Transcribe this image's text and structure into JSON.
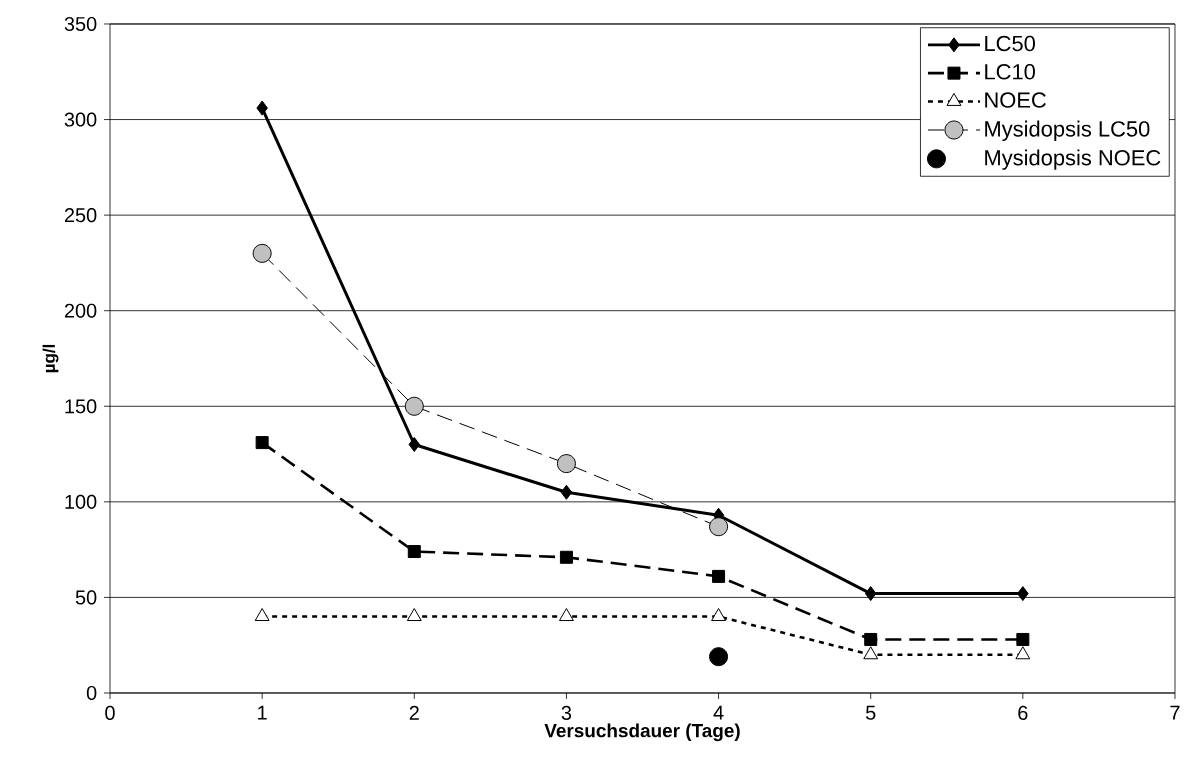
{
  "chart_data": {
    "type": "line",
    "xlabel": "Versuchsdauer (Tage)",
    "ylabel": "µg/l",
    "xlim": [
      0,
      7
    ],
    "xticks": [
      0,
      1,
      2,
      3,
      4,
      5,
      6,
      7
    ],
    "ylim": [
      0,
      350
    ],
    "yticks": [
      0,
      50,
      100,
      150,
      200,
      250,
      300,
      350
    ],
    "grid": "y",
    "legend": "top right",
    "series": [
      {
        "name": "LC50",
        "color": "#000000",
        "x": [
          1,
          2,
          3,
          4,
          5,
          6
        ],
        "values": [
          306,
          130,
          105,
          93,
          52,
          52
        ],
        "marker": "diamond",
        "line_style": "solid"
      },
      {
        "name": "LC10",
        "color": "#000000",
        "x": [
          1,
          2,
          3,
          4,
          5,
          6
        ],
        "values": [
          131,
          74,
          71,
          61,
          28,
          28
        ],
        "marker": "square",
        "line_style": "dashed"
      },
      {
        "name": "NOEC",
        "color": "#ffffff",
        "x": [
          1,
          2,
          3,
          4,
          5,
          6
        ],
        "values": [
          40,
          40,
          40,
          40,
          20,
          20
        ],
        "marker": "triangle",
        "line_style": "dotted"
      },
      {
        "name": "Mysidopsis LC50",
        "color": "#c0c0c0",
        "x": [
          1,
          2,
          3,
          4
        ],
        "values": [
          230,
          150,
          120,
          87
        ],
        "marker": "circle",
        "line_style": "dashed"
      },
      {
        "name": "Mysidopsis NOEC",
        "type": "scatter",
        "color": "#000000",
        "x": [
          4
        ],
        "values": [
          19
        ],
        "marker": "circle"
      }
    ]
  }
}
